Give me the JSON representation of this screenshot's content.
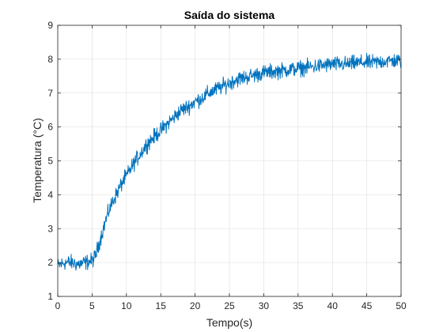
{
  "chart_data": {
    "type": "line",
    "title": "Saída do sistema",
    "xlabel": "Tempo(s)",
    "ylabel": "Temperatura (°C)",
    "xlim": [
      0,
      50
    ],
    "ylim": [
      1,
      9
    ],
    "xticks": [
      0,
      5,
      10,
      15,
      20,
      25,
      30,
      35,
      40,
      45,
      50
    ],
    "yticks": [
      1,
      2,
      3,
      4,
      5,
      6,
      7,
      8,
      9
    ],
    "xtick_labels": [
      "0",
      "5",
      "10",
      "15",
      "20",
      "25",
      "30",
      "35",
      "40",
      "45",
      "50"
    ],
    "ytick_labels": [
      "1",
      "2",
      "3",
      "4",
      "5",
      "6",
      "7",
      "8",
      "9"
    ],
    "grid": true,
    "line_color": "#0072BD",
    "series": [
      {
        "x": [
          0,
          1,
          2,
          3,
          4,
          5,
          5.5,
          6,
          6.5,
          7,
          7.5,
          8,
          8.5,
          9,
          9.5,
          10,
          11,
          12,
          13,
          14,
          15,
          16,
          17,
          18,
          19,
          20,
          21,
          22,
          23,
          24,
          25,
          26,
          27,
          28,
          29,
          30,
          32,
          34,
          36,
          38,
          40,
          42,
          44,
          46,
          48,
          50
        ],
        "y": [
          1.9,
          2.0,
          2.0,
          1.95,
          2.0,
          2.05,
          2.2,
          2.55,
          2.9,
          3.25,
          3.55,
          3.8,
          4.0,
          4.2,
          4.4,
          4.55,
          4.9,
          5.2,
          5.5,
          5.7,
          5.9,
          6.1,
          6.3,
          6.5,
          6.6,
          6.75,
          6.85,
          7.0,
          7.1,
          7.2,
          7.3,
          7.4,
          7.45,
          7.5,
          7.55,
          7.6,
          7.65,
          7.7,
          7.75,
          7.8,
          7.85,
          7.85,
          7.9,
          7.9,
          7.95,
          7.95
        ]
      }
    ]
  }
}
